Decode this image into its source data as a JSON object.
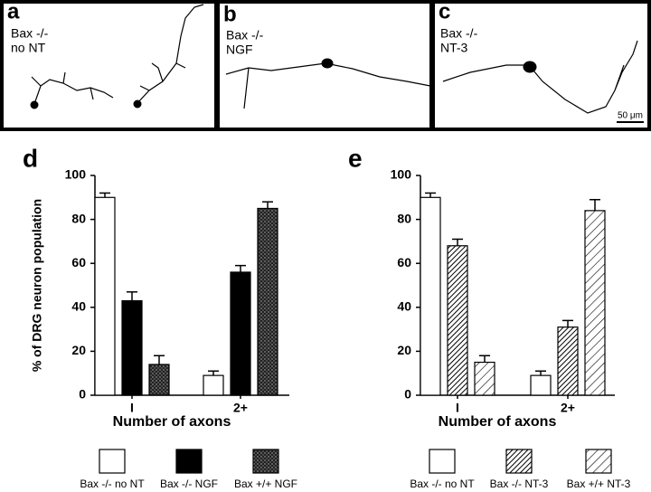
{
  "images": [
    {
      "label": "a",
      "lines": [
        "Bax -/-",
        "no NT"
      ]
    },
    {
      "label": "b",
      "lines": [
        "Bax -/-",
        "NGF"
      ]
    },
    {
      "label": "c",
      "lines": [
        "Bax -/-",
        "NT-3"
      ],
      "scale_bar": "50 μm"
    }
  ],
  "chart_data": [
    {
      "type": "bar",
      "panel": "d",
      "ylabel": "% of DRG neuron population",
      "xlabel": "Number of axons",
      "categories": [
        "I",
        "2+"
      ],
      "ylim": [
        0,
        100
      ],
      "yticks": [
        0,
        20,
        40,
        60,
        80,
        100
      ],
      "series": [
        {
          "name": "Bax -/- no NT",
          "color": "#ffffff",
          "pattern": "solid",
          "values": [
            90,
            9
          ],
          "errors": [
            2,
            2
          ]
        },
        {
          "name": "Bax -/- NGF",
          "color": "#000000",
          "pattern": "solid",
          "values": [
            43,
            56
          ],
          "errors": [
            4,
            3
          ]
        },
        {
          "name": "Bax +/+ NGF",
          "color": "#333333",
          "pattern": "stipple",
          "values": [
            14,
            85
          ],
          "errors": [
            4,
            3
          ]
        }
      ]
    },
    {
      "type": "bar",
      "panel": "e",
      "xlabel": "Number of axons",
      "categories": [
        "I",
        "2+"
      ],
      "ylim": [
        0,
        100
      ],
      "yticks": [
        0,
        20,
        40,
        60,
        80,
        100
      ],
      "series": [
        {
          "name": "Bax -/- no NT",
          "color": "#ffffff",
          "pattern": "solid",
          "values": [
            90,
            9
          ],
          "errors": [
            2,
            2
          ]
        },
        {
          "name": "Bax -/- NT-3",
          "color": "#000000",
          "pattern": "hatch-dense",
          "values": [
            68,
            31
          ],
          "errors": [
            3,
            3
          ]
        },
        {
          "name": "Bax +/+ NT-3",
          "color": "#000000",
          "pattern": "hatch-sparse",
          "values": [
            15,
            84
          ],
          "errors": [
            3,
            5
          ]
        }
      ]
    }
  ]
}
